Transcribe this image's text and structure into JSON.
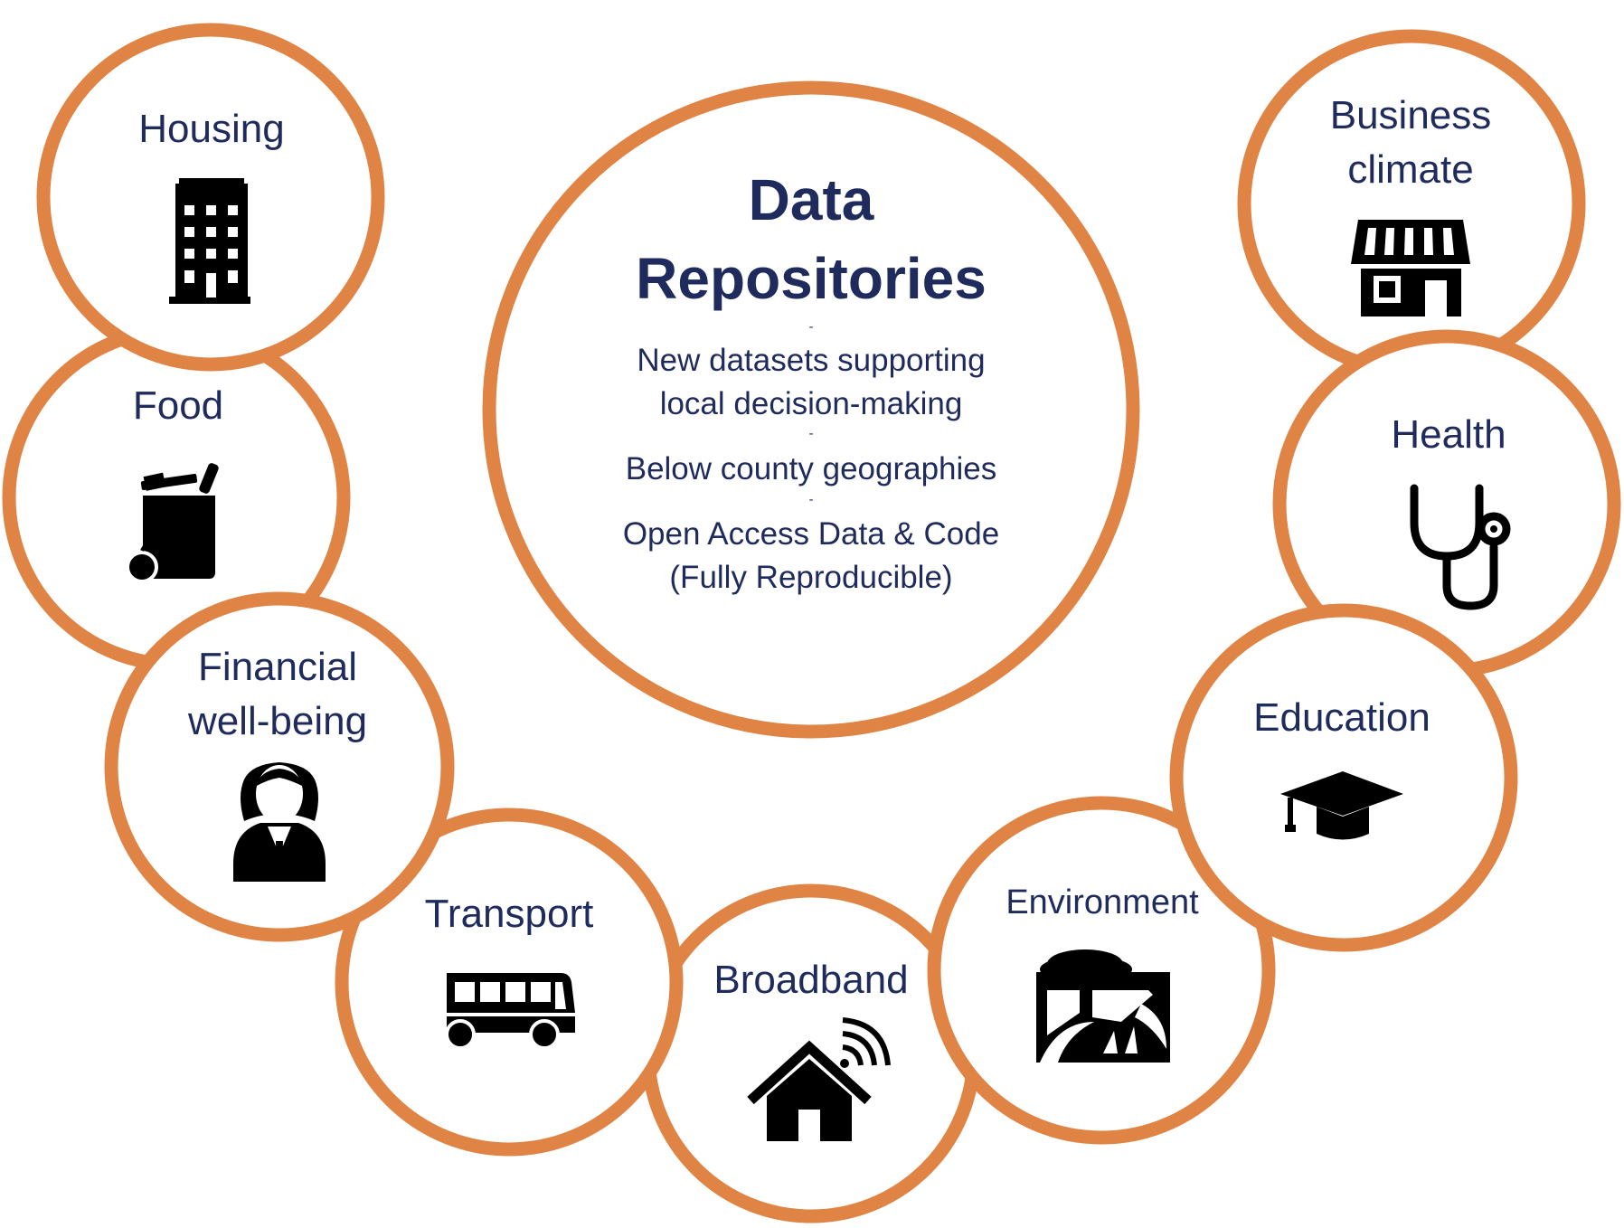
{
  "center": {
    "title_line1": "Data",
    "title_line2": "Repositories",
    "separator": "-",
    "point1_line1": "New datasets supporting",
    "point1_line2": "local decision-making",
    "point2": "Below county geographies",
    "point3_line1": "Open Access Data & Code",
    "point3_line2": "(Fully Reproducible)"
  },
  "topics": {
    "housing": "Housing",
    "food": "Food",
    "financial_line1": "Financial",
    "financial_line2": "well-being",
    "transport": "Transport",
    "broadband": "Broadband",
    "environment": "Environment",
    "education": "Education",
    "health": "Health",
    "business_line1": "Business",
    "business_line2": "climate"
  },
  "colors": {
    "ring": "#df8445",
    "text": "#1f2b5c",
    "icon": "#000000"
  },
  "icons": {
    "housing": "apartment-building-icon",
    "food": "grocery-bag-icon",
    "financial": "businesswoman-icon",
    "transport": "bus-icon",
    "broadband": "smart-home-wifi-icon",
    "environment": "nature-landscape-icon",
    "education": "graduation-cap-icon",
    "health": "stethoscope-icon",
    "business": "storefront-icon"
  }
}
